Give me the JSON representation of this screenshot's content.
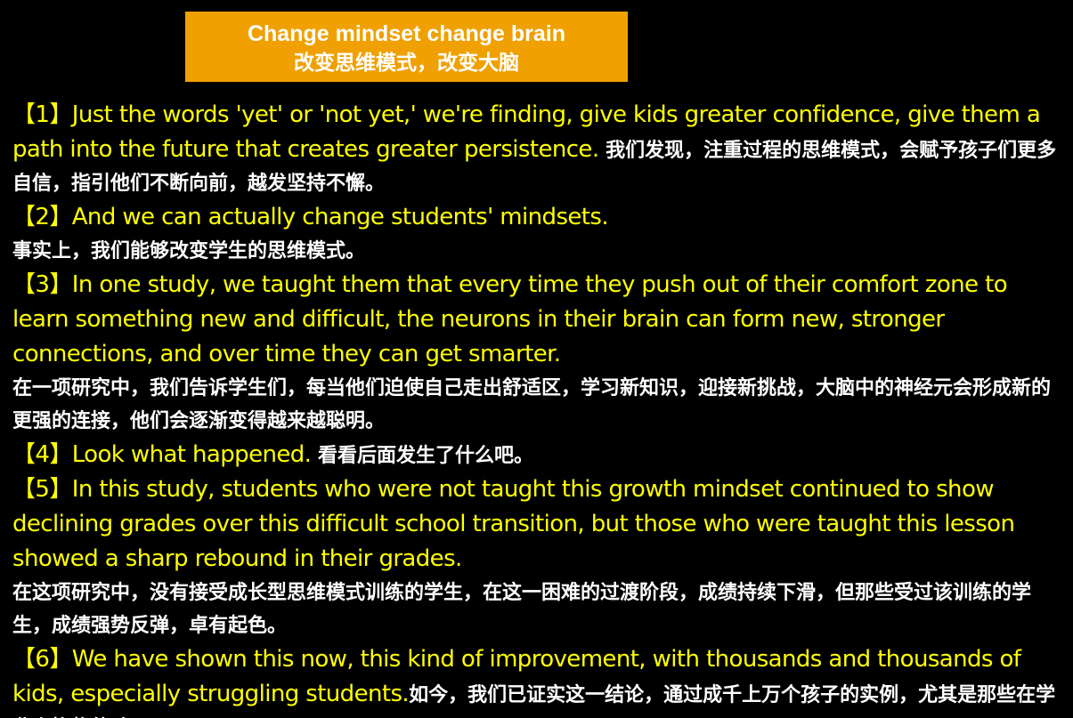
{
  "header": {
    "title_en": "Change mindset change brain",
    "title_zh": "改变思维模式，改变大脑"
  },
  "colors": {
    "background": "#000000",
    "title_box": "#f0a000",
    "english_text": "#ffff00",
    "chinese_text": "#ffffff"
  },
  "paragraphs": [
    {
      "num": "【1】",
      "en": "Just the words 'yet' or 'not yet,' we're finding, give kids greater confidence, give them a path into the future that creates greater persistence.  ",
      "zh": "我们发现，注重过程的思维模式，会赋予孩子们更多自信，指引他们不断向前，越发坚持不懈。"
    },
    {
      "num": "【2】",
      "en": "And we can actually change students' mindsets.",
      "zh": "事实上，我们能够改变学生的思维模式。"
    },
    {
      "num": "【3】",
      "en": "In one study, we taught them that every time they push out of their comfort zone to learn something new and difficult, the neurons in their brain can form new, stronger connections, and over time they can get smarter.",
      "zh": "在一项研究中，我们告诉学生们，每当他们迫使自己走出舒适区，学习新知识，迎接新挑战，大脑中的神经元会形成新的更强的连接，他们会逐渐变得越来越聪明。"
    },
    {
      "num": "【4】",
      "en": "Look what happened.  ",
      "zh": "看看后面发生了什么吧。"
    },
    {
      "num": "【5】",
      "en": "In this study, students who were not taught this growth mindset continued to show declining grades over this difficult school transition, but those who were taught this lesson showed a sharp rebound in their grades.",
      "zh": "在这项研究中，没有接受成长型思维模式训练的学生，在这一困难的过渡阶段，成绩持续下滑，但那些受过该训练的学生，成绩强势反弹，卓有起色。"
    },
    {
      "num": "【6】",
      "en": "We have shown this now, this kind of improvement, with thousands and thousands of kids, especially struggling students.",
      "zh": "如今，我们已证实这一结论，通过成千上万个孩子的实例，尤其是那些在学业上挣扎的孩子。"
    }
  ]
}
